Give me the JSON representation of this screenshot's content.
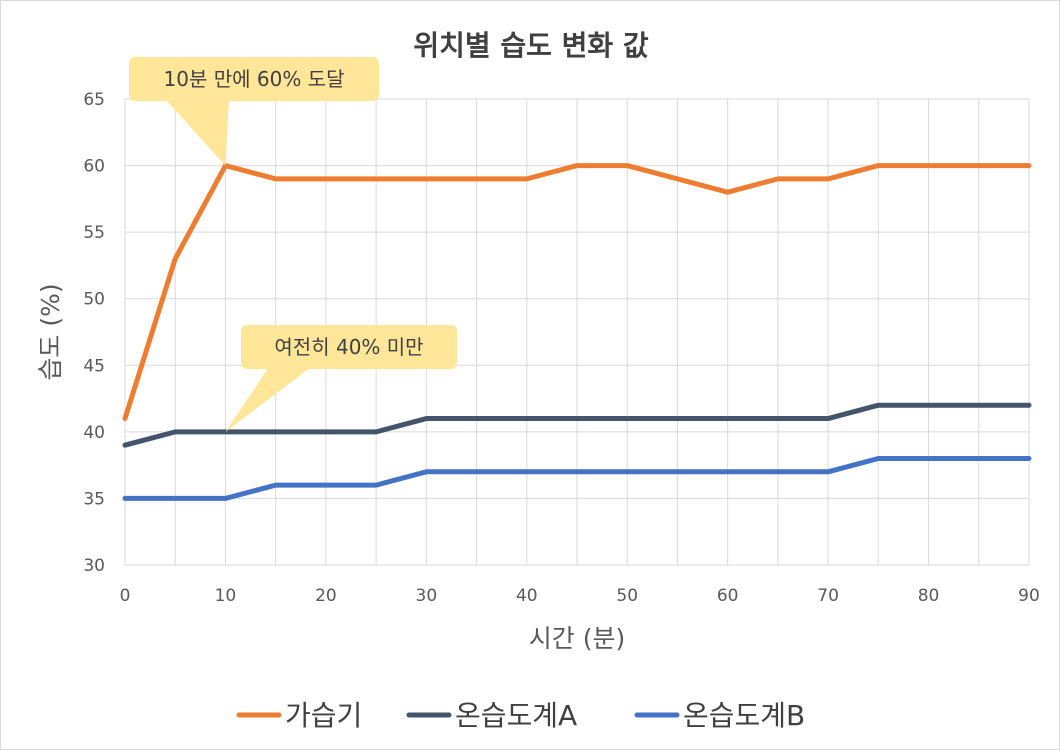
{
  "chart_data": {
    "type": "line",
    "title": "위치별 습도 변화 값",
    "xlabel": "시간 (분)",
    "ylabel": "습도 (%)",
    "x": [
      0,
      5,
      10,
      15,
      20,
      25,
      30,
      35,
      40,
      45,
      50,
      55,
      60,
      65,
      70,
      75,
      80,
      85,
      90
    ],
    "x_ticks": [
      "0",
      "10",
      "20",
      "30",
      "40",
      "50",
      "60",
      "70",
      "80",
      "90"
    ],
    "y_ticks": [
      "30",
      "35",
      "40",
      "45",
      "50",
      "55",
      "60",
      "65"
    ],
    "xlim": [
      0,
      90
    ],
    "ylim": [
      30,
      65
    ],
    "grid": true,
    "legend_position": "bottom",
    "series": [
      {
        "name": "가습기",
        "color": "#ED7D31",
        "values": [
          41,
          53,
          60,
          59,
          59,
          59,
          59,
          59,
          59,
          60,
          60,
          59,
          58,
          59,
          59,
          60,
          60,
          60,
          60
        ]
      },
      {
        "name": "온습도계A",
        "color": "#44546A",
        "values": [
          39,
          40,
          40,
          40,
          40,
          40,
          41,
          41,
          41,
          41,
          41,
          41,
          41,
          41,
          41,
          42,
          42,
          42,
          42
        ]
      },
      {
        "name": "온습도계B",
        "color": "#4472C4",
        "values": [
          35,
          35,
          35,
          36,
          36,
          36,
          37,
          37,
          37,
          37,
          37,
          37,
          37,
          37,
          37,
          38,
          38,
          38,
          38
        ]
      }
    ],
    "annotations": [
      {
        "text": "10분 만에 60% 도달",
        "x": 10,
        "y": 60
      },
      {
        "text": "여전히 40% 미만",
        "x": 10,
        "y": 40
      }
    ],
    "callout_color": "#FFE699"
  }
}
